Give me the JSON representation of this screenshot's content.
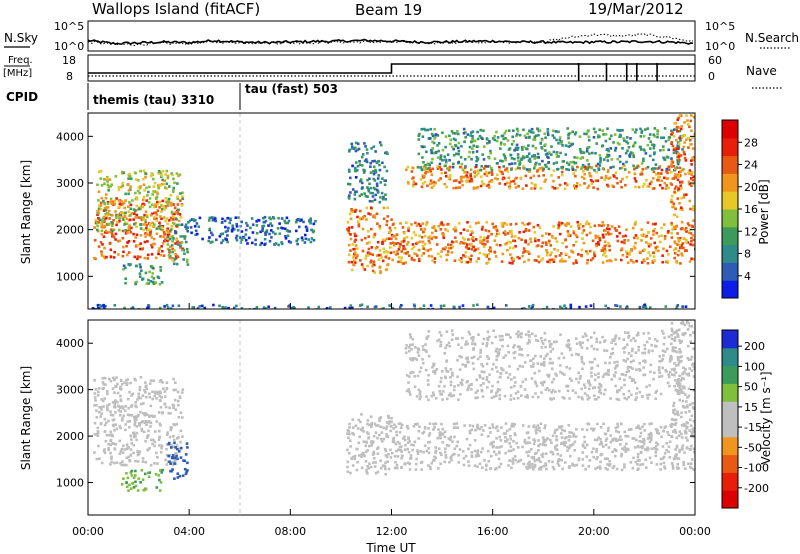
{
  "header": {
    "radar": "Wallops Island (fitACF)",
    "beam": "Beam 19",
    "date": "19/Mar/2012"
  },
  "colors": {
    "power_scale": [
      "#0a1ee6",
      "#2e5bb4",
      "#2f8a8a",
      "#3c9b5a",
      "#7fbf3c",
      "#e6c828",
      "#f0961e",
      "#e85a14",
      "#e61e0a",
      "#dc0000"
    ],
    "velocity_scale": [
      "#1e2ad2",
      "#2e5bb4",
      "#2f8a8a",
      "#3c9b5a",
      "#7fbf3c",
      "#bfbfbf",
      "#bfbfbf",
      "#f0961e",
      "#e85a14",
      "#e61e0a",
      "#dc0000"
    ],
    "ground_scatter": "#bebebe"
  },
  "chart_data": [
    {
      "type": "line",
      "name": "nsky-nsearch",
      "left_label": "N.Sky",
      "right_label": "N.Search",
      "left_ticks": [
        "10^5",
        "10^0"
      ],
      "right_ticks": [
        "10^5",
        "10^0"
      ],
      "x": [
        0,
        1,
        2,
        3,
        4,
        5,
        6,
        7,
        8,
        9,
        10,
        11,
        12,
        13,
        14,
        15,
        16,
        17,
        18,
        19,
        20,
        21,
        22,
        23,
        24
      ],
      "series": [
        {
          "key": "nsky",
          "values": [
            0.35,
            0.25,
            0.27,
            0.3,
            0.28,
            0.35,
            0.3,
            0.28,
            0.3,
            0.32,
            0.33,
            0.35,
            0.33,
            0.3,
            0.3,
            0.32,
            0.33,
            0.3,
            0.3,
            0.28,
            0.3,
            0.3,
            0.32,
            0.3,
            0.25
          ]
        },
        {
          "key": "nsearch",
          "values": [
            0.3,
            0.22,
            0.22,
            0.25,
            0.25,
            0.3,
            0.28,
            0.27,
            0.27,
            0.28,
            0.3,
            0.3,
            0.3,
            0.28,
            0.27,
            0.28,
            0.3,
            0.3,
            0.3,
            0.45,
            0.55,
            0.5,
            0.55,
            0.45,
            0.3
          ]
        }
      ]
    },
    {
      "type": "line",
      "name": "freq-nave",
      "left_label_top": "Freq.",
      "left_label_bottom": "[MHz]",
      "right_label": "Nave",
      "left_ticks": [
        "18",
        "8"
      ],
      "right_ticks": [
        "60",
        "0"
      ],
      "freq_steps": [
        {
          "x": 0,
          "y": 10.5
        },
        {
          "x": 12,
          "y": 10.5
        },
        {
          "x": 12,
          "y": 15.0
        },
        {
          "x": 24,
          "y": 15.0
        }
      ],
      "nave_steps": [
        {
          "x": 0,
          "y": 6
        },
        {
          "x": 24,
          "y": 6
        }
      ],
      "nave_spikes": [
        19.4,
        20.5,
        21.3,
        21.7,
        22.5
      ]
    },
    {
      "type": "table",
      "name": "cpid",
      "label": "CPID",
      "segments": [
        {
          "start": 0,
          "end": 6,
          "text": "themis (tau) 3310"
        },
        {
          "start": 6,
          "end": 24,
          "text": "tau (fast) 503"
        }
      ]
    },
    {
      "type": "heatmap",
      "name": "power",
      "ylabel": "Slant Range [km]",
      "ylim": [
        300,
        4500
      ],
      "yticks": [
        1000,
        2000,
        3000,
        4000
      ],
      "xlim": [
        0,
        24
      ],
      "colorbar_label": "Power [dB]",
      "colorbar_ticks": [
        4,
        8,
        12,
        16,
        20,
        24,
        28
      ],
      "colorbar_range": [
        0,
        32
      ],
      "regions": [
        {
          "t0": 0.2,
          "t1": 3.7,
          "r0": 1400,
          "r1": 2700,
          "v": 24
        },
        {
          "t0": 0.3,
          "t1": 3.7,
          "r0": 2000,
          "r1": 3300,
          "v": 16
        },
        {
          "t0": 1.3,
          "t1": 2.9,
          "r0": 850,
          "r1": 1300,
          "v": 10
        },
        {
          "t0": 3.1,
          "t1": 3.9,
          "r0": 1200,
          "r1": 1900,
          "v": 12
        },
        {
          "t0": 3.3,
          "t1": 9.0,
          "r0": 1700,
          "r1": 2300,
          "v": 6
        },
        {
          "t0": 10.2,
          "t1": 12.0,
          "r0": 1100,
          "r1": 2500,
          "v": 22
        },
        {
          "t0": 10.2,
          "t1": 11.8,
          "r0": 2600,
          "r1": 3900,
          "v": 8
        },
        {
          "t0": 12.0,
          "t1": 24.0,
          "r0": 1300,
          "r1": 2200,
          "v": 22
        },
        {
          "t0": 12.5,
          "t1": 23.5,
          "r0": 2900,
          "r1": 3400,
          "v": 22
        },
        {
          "t0": 13.0,
          "t1": 23.5,
          "r0": 3300,
          "r1": 4200,
          "v": 10
        },
        {
          "t0": 23.0,
          "t1": 24.0,
          "r0": 2000,
          "r1": 4500,
          "v": 22
        },
        {
          "t0": 0.0,
          "t1": 24.0,
          "r0": 300,
          "r1": 420,
          "v": 6
        }
      ]
    },
    {
      "type": "heatmap",
      "name": "velocity",
      "ylabel": "Slant Range [km]",
      "ylim": [
        300,
        4500
      ],
      "yticks": [
        1000,
        2000,
        3000,
        4000
      ],
      "xlim": [
        0,
        24
      ],
      "xticks": [
        "00:00",
        "04:00",
        "08:00",
        "12:00",
        "16:00",
        "20:00",
        "00:00"
      ],
      "xlabel": "Time UT",
      "colorbar_label": "Velocity [m s⁻¹]",
      "colorbar_ticks": [
        200,
        100,
        50,
        15,
        -15,
        -50,
        -100,
        -200
      ],
      "regions": [
        {
          "t0": 0.2,
          "t1": 3.7,
          "r0": 1400,
          "r1": 3300,
          "v": 0
        },
        {
          "t0": 1.3,
          "t1": 2.9,
          "r0": 850,
          "r1": 1300,
          "v": 40
        },
        {
          "t0": 3.1,
          "t1": 3.9,
          "r0": 1100,
          "r1": 1900,
          "v": 150
        },
        {
          "t0": 10.2,
          "t1": 12.0,
          "r0": 1200,
          "r1": 2500,
          "v": 0
        },
        {
          "t0": 12.0,
          "t1": 24.0,
          "r0": 1300,
          "r1": 2300,
          "v": 0
        },
        {
          "t0": 12.5,
          "t1": 23.5,
          "r0": 2800,
          "r1": 4300,
          "v": 0
        },
        {
          "t0": 23.0,
          "t1": 24.0,
          "r0": 2000,
          "r1": 4500,
          "v": 0
        }
      ]
    }
  ]
}
